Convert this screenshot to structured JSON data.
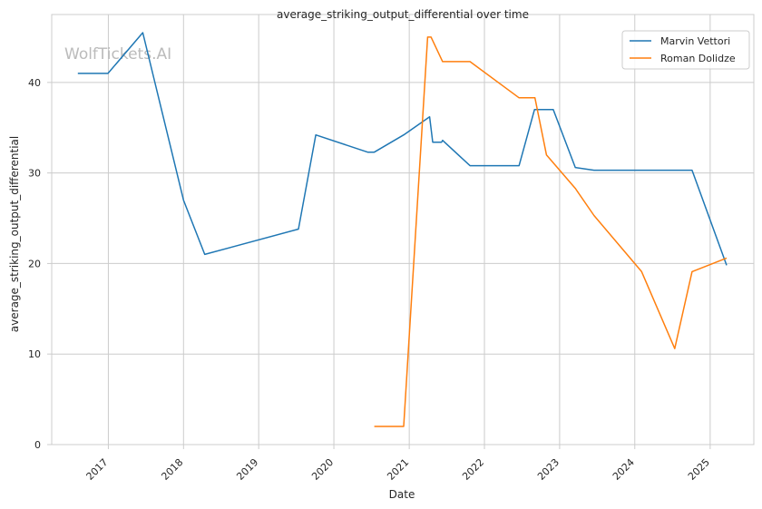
{
  "chart_data": {
    "type": "line",
    "title": "average_striking_output_differential over time",
    "xlabel": "Date",
    "ylabel": "average_striking_output_differential",
    "watermark": "WolfTickets.AI",
    "x_ticks": [
      "2017",
      "2018",
      "2019",
      "2020",
      "2021",
      "2022",
      "2023",
      "2024",
      "2025"
    ],
    "y_ticks": [
      "0",
      "10",
      "20",
      "30",
      "40"
    ],
    "xlim": [
      "2016-04-01",
      "2025-08-01"
    ],
    "ylim": [
      0,
      47.5
    ],
    "grid": true,
    "legend_position": "top-right",
    "series": [
      {
        "name": "Marvin Vettori",
        "color": "#1f77b4",
        "points": [
          [
            "2016-08-06",
            41.0
          ],
          [
            "2016-12-30",
            41.0
          ],
          [
            "2017-06-17",
            45.5
          ],
          [
            "2018-01-01",
            27.0
          ],
          [
            "2018-04-14",
            21.0
          ],
          [
            "2019-07-13",
            23.8
          ],
          [
            "2019-10-05",
            34.2
          ],
          [
            "2020-06-13",
            32.3
          ],
          [
            "2020-07-15",
            32.3
          ],
          [
            "2020-12-05",
            34.2
          ],
          [
            "2021-04-10",
            36.2
          ],
          [
            "2021-04-25",
            33.4
          ],
          [
            "2021-06-07",
            33.4
          ],
          [
            "2021-06-12",
            33.6
          ],
          [
            "2021-10-23",
            30.8
          ],
          [
            "2022-06-18",
            30.8
          ],
          [
            "2022-09-01",
            37.0
          ],
          [
            "2022-12-01",
            37.0
          ],
          [
            "2023-03-18",
            30.6
          ],
          [
            "2023-06-17",
            30.3
          ],
          [
            "2024-10-05",
            30.3
          ],
          [
            "2025-03-22",
            19.8
          ]
        ]
      },
      {
        "name": "Roman Dolidze",
        "color": "#ff7f0e",
        "points": [
          [
            "2020-07-15",
            2.0
          ],
          [
            "2020-12-05",
            2.0
          ],
          [
            "2021-03-31",
            45.0
          ],
          [
            "2021-04-17",
            45.0
          ],
          [
            "2021-06-12",
            42.3
          ],
          [
            "2021-10-23",
            42.3
          ],
          [
            "2022-06-18",
            38.3
          ],
          [
            "2022-09-03",
            38.3
          ],
          [
            "2022-10-29",
            32.0
          ],
          [
            "2023-03-18",
            28.3
          ],
          [
            "2023-06-17",
            25.3
          ],
          [
            "2024-02-03",
            19.1
          ],
          [
            "2024-07-13",
            10.6
          ],
          [
            "2024-10-05",
            19.1
          ],
          [
            "2025-03-22",
            20.6
          ]
        ]
      }
    ]
  }
}
